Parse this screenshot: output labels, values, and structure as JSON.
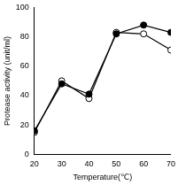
{
  "chart_data": {
    "type": "line",
    "x_label": "Temperature(℃)",
    "y_label": "Protease activity (unit/ml)",
    "x": [
      20,
      30,
      40,
      50,
      60,
      70
    ],
    "series": [
      {
        "color": "#000000",
        "marker": "filled_circle",
        "values": [
          16,
          48,
          41,
          82,
          88,
          83
        ]
      },
      {
        "color": "#000000",
        "marker": "open_circle",
        "values": [
          15,
          50,
          38,
          83,
          82,
          71
        ]
      }
    ],
    "xlim": [
      20,
      70
    ],
    "xticks": [
      20,
      30,
      40,
      50,
      60,
      70
    ],
    "ylim": [
      0,
      100
    ],
    "yticks": [
      0,
      20,
      40,
      60,
      80,
      100
    ],
    "grid": false
  }
}
